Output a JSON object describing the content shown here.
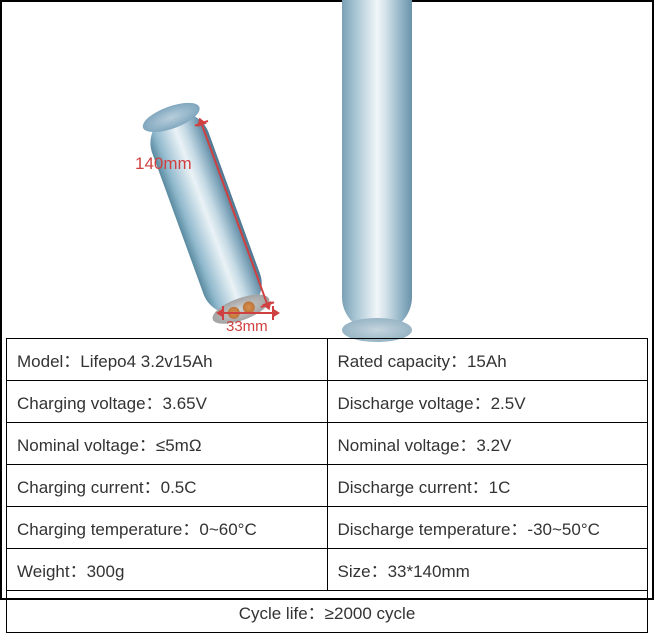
{
  "dimensions": {
    "height_label": "140mm",
    "width_label": "33mm",
    "dim_color": "#d04040"
  },
  "specs": {
    "rows": [
      {
        "left": "Model：Lifepo4  3.2v15Ah",
        "right": "Rated capacity：15Ah"
      },
      {
        "left": "Charging voltage：3.65V",
        "right": "Discharge voltage：2.5V"
      },
      {
        "left": "Nominal voltage：≤5mΩ",
        "right": "Nominal voltage：3.2V"
      },
      {
        "left": "Charging current：0.5C",
        "right": "Discharge current：1C"
      },
      {
        "left": "Charging temperature：0~60°C",
        "right": "Discharge temperature：-30~50°C"
      },
      {
        "left": "Weight：300g",
        "right": "Size：33*140mm"
      }
    ],
    "footer": "Cycle life：≥2000 cycle"
  },
  "style": {
    "border_color": "#000000",
    "text_color": "#333333",
    "font_size_cell": 17
  }
}
